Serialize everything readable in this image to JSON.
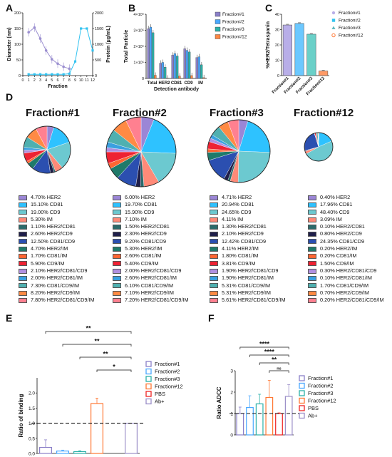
{
  "panel_labels": [
    "A",
    "B",
    "C",
    "D",
    "E",
    "F"
  ],
  "colors": {
    "lavender": "#9b8fd0",
    "blue": "#33aaff",
    "teal": "#20b2aa",
    "orange": "#ff7733",
    "red": "#ee2222",
    "purple": "#9b8fc8",
    "dark_purple": "#5a4a9a"
  },
  "chart_data": [
    {
      "panel": "A",
      "type": "line",
      "xlabel": "Fraction",
      "ylabel": "Diameter (nm)",
      "y2label": "Protein (μg/mL)",
      "xlim": [
        0,
        12
      ],
      "ylim": [
        0,
        200
      ],
      "y2lim": [
        0,
        2000
      ],
      "xticks": [
        "0",
        "1",
        "2",
        "3",
        "4",
        "5",
        "6",
        "7",
        "8",
        "9",
        "10",
        "11",
        "12"
      ],
      "yticks": [
        "0",
        "50",
        "100",
        "150",
        "200"
      ],
      "y2ticks": [
        "0",
        "500",
        "1000",
        "1500",
        "2000"
      ],
      "series": [
        {
          "axis": "left",
          "color": "#9b8fd0",
          "x": [
            1,
            2,
            3,
            4,
            5,
            6,
            7,
            8
          ],
          "values": [
            138,
            153,
            118,
            80,
            52,
            38,
            28,
            22
          ]
        },
        {
          "axis": "right",
          "color": "#33c3f0",
          "x": [
            1,
            2,
            3,
            4,
            5,
            6,
            7,
            8,
            9,
            10,
            11,
            12
          ],
          "values": [
            40,
            40,
            40,
            40,
            40,
            40,
            40,
            60,
            450,
            1500,
            1500,
            800
          ]
        }
      ]
    },
    {
      "panel": "B",
      "type": "bar",
      "ylabel": "Total Particle",
      "xlabel": "Detection antibody",
      "ylim": [
        0,
        400000
      ],
      "yticks": [
        "0",
        "1×10⁵",
        "2×10⁵",
        "3×10⁵",
        "4×10⁵"
      ],
      "categories": [
        "Total",
        "HER2",
        "CD81",
        "CD9",
        "IM"
      ],
      "series": [
        {
          "name": "Fraction#1",
          "color": "#8a7fc8",
          "values": [
            310000,
            95000,
            145000,
            185000,
            130000
          ]
        },
        {
          "name": "Fraction#2",
          "color": "#4aa8ff",
          "values": [
            320000,
            100000,
            155000,
            175000,
            135000
          ]
        },
        {
          "name": "Fraction#3",
          "color": "#2bb0a8",
          "values": [
            285000,
            70000,
            140000,
            165000,
            85000
          ]
        },
        {
          "name": "Fraction#12",
          "color": "#ff8844",
          "values": [
            20000,
            2000,
            15000,
            18000,
            5000
          ]
        }
      ]
    },
    {
      "panel": "C",
      "type": "bar",
      "ylabel": "%HER2/Tetraspanin",
      "ylim": [
        0,
        40
      ],
      "yticks": [
        "0",
        "10",
        "20",
        "30",
        "40"
      ],
      "categories": [
        "Fraction#1",
        "Fraction#2",
        "Fraction#3",
        "Fraction#12"
      ],
      "values": [
        33,
        34,
        27,
        3
      ],
      "colors": [
        "#b8aee8",
        "#6cc8ff",
        "#6ad0c8",
        "#ff9a66"
      ],
      "legend": [
        "Fraction#1",
        "Fraction#2",
        "Fraction#3",
        "Fraction#12"
      ]
    },
    {
      "panel": "D",
      "type": "pie",
      "categories": [
        "HER2",
        "CD81",
        "CD9",
        "IM",
        "HER2/CD81",
        "HER2/CD9",
        "CD81/CD9",
        "HER2/IM",
        "CD81/IM",
        "CD9/IM",
        "HER2/CD81/CD9",
        "HER2/CD81/IM",
        "CD81/CD9/IM",
        "HER2/CD9/IM",
        "HER2/CD81/CD9/IM"
      ],
      "slice_colors": [
        "#9b86d6",
        "#2ec2ff",
        "#6cc9d0",
        "#ff8a78",
        "#2a6a6a",
        "#1f1f4a",
        "#2b4fb0",
        "#1f7a6a",
        "#ff6633",
        "#ee2233",
        "#b090e0",
        "#3aa0e0",
        "#4fb0b0",
        "#ff8a44",
        "#ff8090"
      ],
      "pies": [
        {
          "title": "Fraction#1",
          "values": [
            4.7,
            15.1,
            19.0,
            5.3,
            1.1,
            2.6,
            12.5,
            4.7,
            1.7,
            5.9,
            2.1,
            2.0,
            7.3,
            8.2,
            7.8
          ],
          "labels": [
            "4.70% HER2",
            "15.10% CD81",
            "19.00% CD9",
            "5.30% IM",
            "1.10% HER2/CD81",
            "2.60% HER2/CD9",
            "12.50% CD81/CD9",
            "4.70% HER2/IM",
            "1.70% CD81/IM",
            "5.90% CD9/IM",
            "2.10% HER2/CD81/CD9",
            "2.00% HER2/CD81/IM",
            "7.30% CD81/CD9/IM",
            "8.20% HER2/CD9/IM",
            "7.80% HER2/CD81/CD9/IM"
          ]
        },
        {
          "title": "Fraction#2",
          "values": [
            6.0,
            19.7,
            15.9,
            7.1,
            1.5,
            2.3,
            9.2,
            5.3,
            2.6,
            5.4,
            2.0,
            2.6,
            6.1,
            7.1,
            7.2
          ],
          "labels": [
            "6.00% HER2",
            "19.70% CD81",
            "15.90% CD9",
            "7.10% IM",
            "1.50% HER2/CD81",
            "2.30% HER2/CD9",
            "9.20% CD81/CD9",
            "5.30% HER2/IM",
            "2.60% CD81/IM",
            "5.40% CD9/IM",
            "2.00% HER2/CD81/CD9",
            "2.60% HER2/CD81/IM",
            "6.10% CD81/CD9/IM",
            "7.10% HER2/CD9/IM",
            "7.20% HER2/CD81/CD9/IM"
          ]
        },
        {
          "title": "Fraction#3",
          "values": [
            4.71,
            20.94,
            24.65,
            4.11,
            1.3,
            2.1,
            12.42,
            4.11,
            1.8,
            3.81,
            1.9,
            1.9,
            5.31,
            5.31,
            5.61
          ],
          "labels": [
            "4.71% HER2",
            "20.94% CD81",
            "24.65% CD9",
            "4.11% IM",
            "1.30% HER2/CD81",
            "2.10% HER2/CD9",
            "12.42% CD81/CD9",
            "4.11% HER2/IM",
            "1.80% CD81/IM",
            "3.81% CD9/IM",
            "1.90% HER2/CD81/CD9",
            "1.90% HER2/CD81/IM",
            "5.31% CD81/CD9/IM",
            "5.31% HER2/CD9/IM",
            "5.61% HER2/CD81/CD9/IM"
          ]
        },
        {
          "title": "Fraction#12",
          "values": [
            0.4,
            17.96,
            48.4,
            3.09,
            0.1,
            0.8,
            24.35,
            0.2,
            0.2,
            1.5,
            0.3,
            0.1,
            1.7,
            0.7,
            0.2
          ],
          "labels": [
            "0.40% HER2",
            "17.96% CD81",
            "48.40% CD9",
            "3.09% IM",
            "0.10% HER2/CD81",
            "0.80% HER2/CD9",
            "24.35% CD81/CD9",
            "0.20% HER2/IM",
            "0.20% CD81/IM",
            "1.50% CD9/IM",
            "0.30% HER2/CD81/CD9",
            "0.10% HER2/CD81/IM",
            "1.70% CD81/CD9/IM",
            "0.70% HER2/CD9/IM",
            "0.20% HER2/CD81/CD9/IM"
          ]
        }
      ]
    },
    {
      "panel": "E",
      "type": "bar",
      "ylabel": "Ratio of binding",
      "ylim": [
        0,
        2.5
      ],
      "yticks": [
        "0.0",
        "0.5",
        "1.0",
        "1.5",
        "2.0"
      ],
      "categories": [
        "Fraction#1",
        "Fraction#2",
        "Fraction#3",
        "Fraction#12",
        "PBS",
        "Ab+"
      ],
      "values": [
        0.2,
        0.08,
        0.06,
        1.65,
        0.0,
        1.0
      ],
      "errors": [
        0.25,
        0.03,
        0.03,
        0.18,
        0.0,
        0.0
      ],
      "colors": [
        "#8a7fc8",
        "#4aa8ff",
        "#2bb0a8",
        "#ff7733",
        "#ee2222",
        "#9b8fc8"
      ],
      "baseline": 1.0,
      "significance": [
        "**",
        "**",
        "**",
        "*"
      ]
    },
    {
      "panel": "F",
      "type": "bar",
      "ylabel": "Ratio ADCC",
      "ylim": [
        0,
        3
      ],
      "yticks": [
        "0",
        "1",
        "2",
        "3"
      ],
      "categories": [
        "Fraction#1",
        "Fraction#2",
        "Fraction#3",
        "Fraction#12",
        "PBS",
        "Ab+"
      ],
      "values": [
        1.0,
        1.28,
        1.45,
        1.75,
        1.0,
        1.8
      ],
      "errors": [
        0.3,
        0.55,
        0.45,
        0.8,
        0.03,
        0.55
      ],
      "colors": [
        "#8a7fc8",
        "#4aa8ff",
        "#2bb0a8",
        "#ff7733",
        "#ee2222",
        "#9b8fc8"
      ],
      "baseline": 1.0,
      "significance": [
        "****",
        "****",
        "**",
        "ns"
      ]
    }
  ]
}
